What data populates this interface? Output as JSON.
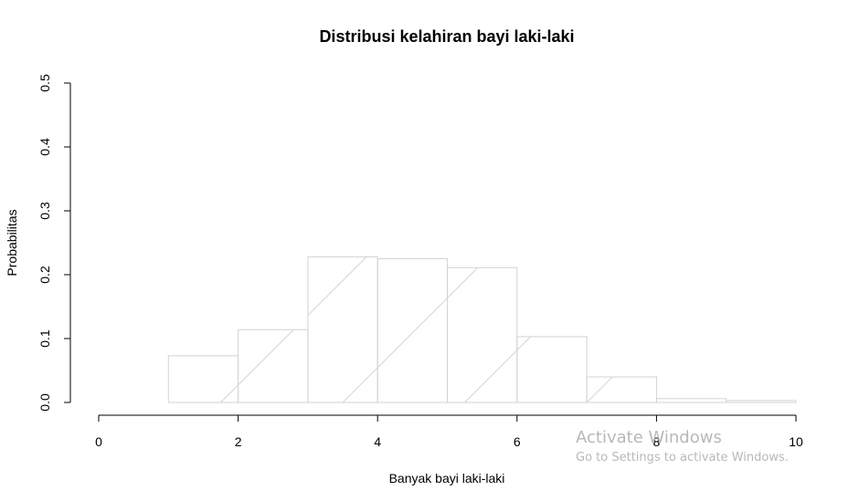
{
  "chart_data": {
    "type": "bar",
    "title": "Distribusi kelahiran bayi laki-laki",
    "xlabel": "Banyak bayi laki-laki",
    "ylabel": "Probabilitas",
    "xlim": [
      0,
      10
    ],
    "ylim": [
      0,
      0.5
    ],
    "xticks": [
      "0",
      "2",
      "4",
      "6",
      "8",
      "10"
    ],
    "yticks": [
      "0.0",
      "0.1",
      "0.2",
      "0.3",
      "0.4",
      "0.5"
    ],
    "bins": [
      {
        "from": 1,
        "to": 2,
        "value": 0.073
      },
      {
        "from": 2,
        "to": 3,
        "value": 0.114
      },
      {
        "from": 3,
        "to": 4,
        "value": 0.228
      },
      {
        "from": 4,
        "to": 5,
        "value": 0.225
      },
      {
        "from": 5,
        "to": 6,
        "value": 0.211
      },
      {
        "from": 6,
        "to": 7,
        "value": 0.103
      },
      {
        "from": 7,
        "to": 8,
        "value": 0.04
      },
      {
        "from": 8,
        "to": 9,
        "value": 0.006
      },
      {
        "from": 9,
        "to": 10,
        "value": 0.003
      }
    ],
    "bar_color": "#d3d3d3",
    "grid": false
  },
  "watermark": {
    "title": "Activate Windows",
    "subtitle": "Go to Settings to activate Windows."
  }
}
